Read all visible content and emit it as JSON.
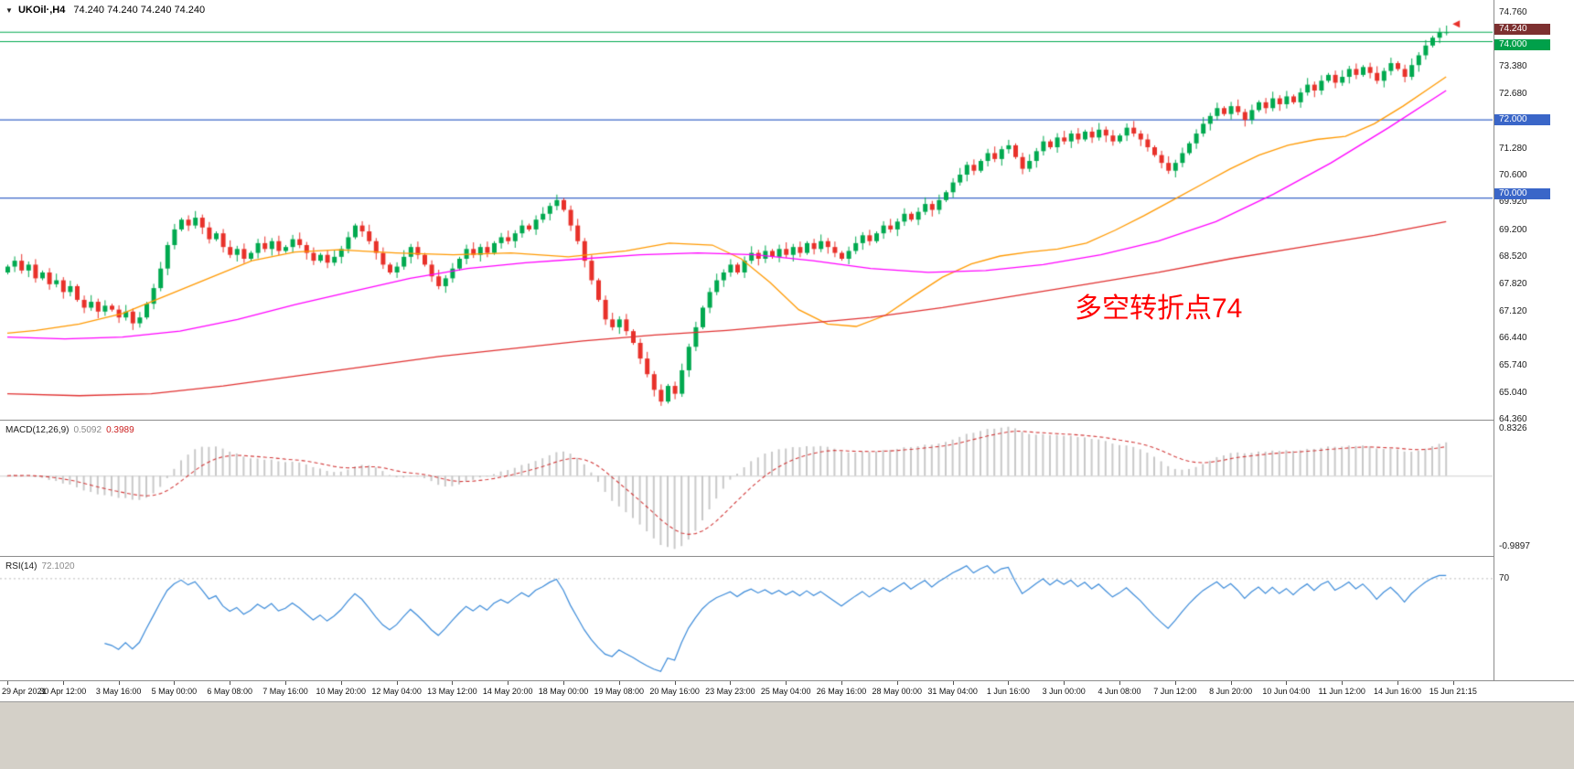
{
  "header": {
    "collapse_icon": "▼",
    "symbol": "UKOil·,H4",
    "ohlc": "74.240 74.240 74.240 74.240"
  },
  "price_axis": {
    "labels": [
      "74.760",
      "73.380",
      "72.680",
      "71.280",
      "70.600",
      "69.920",
      "69.200",
      "68.520",
      "67.820",
      "67.120",
      "66.440",
      "65.740",
      "65.040",
      "64.360"
    ],
    "tags": [
      {
        "label": "74.240",
        "price": 74.24,
        "bg": "#7d3030",
        "dy": -3
      },
      {
        "label": "74.000",
        "price": 74.0,
        "bg": "#00a04a",
        "dy": 3
      },
      {
        "label": "72.000",
        "price": 72.0,
        "bg": "#3a66c8",
        "dy": 0
      },
      {
        "label": "70.000",
        "price": 70.0,
        "bg": "#3a66c8",
        "dy": -5
      }
    ]
  },
  "chart_data": [
    {
      "type": "candlestick",
      "symbol": "UKOil",
      "timeframe": "H4",
      "y_range": [
        64.36,
        74.76
      ],
      "up_color": "#00a94f",
      "down_color": "#e8312a",
      "first_open": 68.1,
      "closes": [
        68.25,
        68.4,
        68.15,
        68.3,
        67.95,
        68.1,
        67.8,
        67.9,
        67.6,
        67.75,
        67.4,
        67.2,
        67.35,
        67.1,
        67.25,
        67.15,
        66.95,
        67.1,
        66.8,
        66.95,
        67.3,
        67.7,
        68.2,
        68.8,
        69.2,
        69.45,
        69.3,
        69.5,
        69.25,
        68.95,
        69.1,
        68.75,
        68.55,
        68.7,
        68.45,
        68.6,
        68.85,
        68.7,
        68.9,
        68.65,
        68.75,
        68.95,
        68.8,
        68.6,
        68.4,
        68.55,
        68.35,
        68.5,
        68.7,
        69.0,
        69.3,
        69.15,
        68.9,
        68.6,
        68.3,
        68.1,
        68.25,
        68.5,
        68.75,
        68.55,
        68.3,
        68.0,
        67.75,
        67.95,
        68.2,
        68.45,
        68.7,
        68.55,
        68.75,
        68.6,
        68.85,
        69.0,
        68.9,
        69.1,
        69.3,
        69.2,
        69.45,
        69.6,
        69.8,
        69.95,
        69.7,
        69.3,
        68.9,
        68.4,
        67.9,
        67.4,
        66.9,
        66.7,
        66.9,
        66.6,
        66.3,
        65.9,
        65.5,
        65.1,
        64.8,
        65.2,
        65.0,
        65.6,
        66.2,
        66.7,
        67.2,
        67.6,
        67.9,
        68.1,
        68.3,
        68.1,
        68.4,
        68.6,
        68.45,
        68.65,
        68.5,
        68.7,
        68.55,
        68.75,
        68.6,
        68.85,
        68.7,
        68.9,
        68.75,
        68.6,
        68.45,
        68.65,
        68.85,
        69.05,
        68.9,
        69.1,
        69.3,
        69.2,
        69.4,
        69.6,
        69.45,
        69.65,
        69.85,
        69.7,
        69.95,
        70.15,
        70.4,
        70.6,
        70.85,
        70.7,
        70.95,
        71.15,
        71.0,
        71.25,
        71.35,
        71.05,
        70.75,
        70.95,
        71.2,
        71.45,
        71.3,
        71.55,
        71.45,
        71.65,
        71.5,
        71.7,
        71.55,
        71.75,
        71.6,
        71.45,
        71.6,
        71.8,
        71.65,
        71.5,
        71.3,
        71.1,
        70.9,
        70.7,
        70.9,
        71.15,
        71.4,
        71.65,
        71.9,
        72.1,
        72.3,
        72.15,
        72.35,
        72.2,
        72.0,
        72.25,
        72.45,
        72.3,
        72.55,
        72.4,
        72.6,
        72.45,
        72.7,
        72.9,
        72.75,
        73.0,
        73.15,
        72.95,
        73.1,
        73.3,
        73.15,
        73.35,
        73.2,
        73.0,
        73.25,
        73.45,
        73.3,
        73.1,
        73.4,
        73.65,
        73.9,
        74.1,
        74.24,
        74.24
      ],
      "hlines": [
        {
          "price": 74.24,
          "color": "#00a94f"
        },
        {
          "price": 74.0,
          "color": "#00a94f"
        },
        {
          "price": 72.0,
          "color": "#3a66c8"
        },
        {
          "price": 70.0,
          "color": "#3a66c8"
        }
      ],
      "ma_lines": [
        {
          "name": "MA fast",
          "color": "#ff9900",
          "points": [
            [
              0,
              66.55
            ],
            [
              0.02,
              66.62
            ],
            [
              0.05,
              66.78
            ],
            [
              0.08,
              67.05
            ],
            [
              0.11,
              67.5
            ],
            [
              0.14,
              67.95
            ],
            [
              0.17,
              68.4
            ],
            [
              0.2,
              68.62
            ],
            [
              0.23,
              68.68
            ],
            [
              0.27,
              68.6
            ],
            [
              0.31,
              68.55
            ],
            [
              0.35,
              68.6
            ],
            [
              0.39,
              68.5
            ],
            [
              0.43,
              68.65
            ],
            [
              0.46,
              68.85
            ],
            [
              0.49,
              68.8
            ],
            [
              0.51,
              68.45
            ],
            [
              0.53,
              67.85
            ],
            [
              0.55,
              67.15
            ],
            [
              0.57,
              66.78
            ],
            [
              0.59,
              66.72
            ],
            [
              0.61,
              67.0
            ],
            [
              0.63,
              67.5
            ],
            [
              0.65,
              67.98
            ],
            [
              0.67,
              68.32
            ],
            [
              0.69,
              68.52
            ],
            [
              0.71,
              68.62
            ],
            [
              0.73,
              68.7
            ],
            [
              0.75,
              68.85
            ],
            [
              0.77,
              69.18
            ],
            [
              0.79,
              69.55
            ],
            [
              0.81,
              69.95
            ],
            [
              0.83,
              70.35
            ],
            [
              0.85,
              70.75
            ],
            [
              0.87,
              71.1
            ],
            [
              0.89,
              71.35
            ],
            [
              0.91,
              71.5
            ],
            [
              0.93,
              71.58
            ],
            [
              0.95,
              71.9
            ],
            [
              0.97,
              72.35
            ],
            [
              0.99,
              72.85
            ],
            [
              1,
              73.1
            ]
          ]
        },
        {
          "name": "MA mid",
          "color": "#ff00ff",
          "points": [
            [
              0,
              66.45
            ],
            [
              0.04,
              66.4
            ],
            [
              0.08,
              66.45
            ],
            [
              0.12,
              66.6
            ],
            [
              0.16,
              66.9
            ],
            [
              0.2,
              67.28
            ],
            [
              0.24,
              67.62
            ],
            [
              0.28,
              67.95
            ],
            [
              0.32,
              68.2
            ],
            [
              0.36,
              68.35
            ],
            [
              0.4,
              68.45
            ],
            [
              0.44,
              68.55
            ],
            [
              0.48,
              68.6
            ],
            [
              0.52,
              68.55
            ],
            [
              0.56,
              68.4
            ],
            [
              0.6,
              68.2
            ],
            [
              0.64,
              68.1
            ],
            [
              0.68,
              68.15
            ],
            [
              0.72,
              68.3
            ],
            [
              0.76,
              68.55
            ],
            [
              0.8,
              68.9
            ],
            [
              0.84,
              69.4
            ],
            [
              0.88,
              70.1
            ],
            [
              0.92,
              70.9
            ],
            [
              0.96,
              71.8
            ],
            [
              1,
              72.75
            ]
          ]
        },
        {
          "name": "MA slow",
          "color": "#e03030",
          "points": [
            [
              0,
              65.0
            ],
            [
              0.05,
              64.95
            ],
            [
              0.1,
              65.0
            ],
            [
              0.15,
              65.2
            ],
            [
              0.2,
              65.45
            ],
            [
              0.25,
              65.7
            ],
            [
              0.3,
              65.95
            ],
            [
              0.35,
              66.15
            ],
            [
              0.4,
              66.35
            ],
            [
              0.45,
              66.5
            ],
            [
              0.5,
              66.62
            ],
            [
              0.55,
              66.78
            ],
            [
              0.6,
              66.95
            ],
            [
              0.65,
              67.2
            ],
            [
              0.7,
              67.5
            ],
            [
              0.75,
              67.8
            ],
            [
              0.8,
              68.1
            ],
            [
              0.85,
              68.45
            ],
            [
              0.9,
              68.75
            ],
            [
              0.95,
              69.05
            ],
            [
              1,
              69.4
            ]
          ]
        }
      ],
      "marker": {
        "type": "arrow",
        "price": 74.45,
        "color": "#e8312a"
      },
      "annotation": {
        "text": "多空转折点74",
        "color": "#ff0000"
      },
      "x_labels": [
        "29 Apr 2021",
        "30 Apr 12:00",
        "3 May 16:00",
        "5 May 00:00",
        "6 May 08:00",
        "7 May 16:00",
        "10 May 20:00",
        "12 May 04:00",
        "13 May 12:00",
        "14 May 20:00",
        "18 May 00:00",
        "19 May 08:00",
        "20 May 16:00",
        "23 May 23:00",
        "25 May 04:00",
        "26 May 16:00",
        "28 May 00:00",
        "31 May 04:00",
        "1 Jun 16:00",
        "3 Jun 00:00",
        "4 Jun 08:00",
        "7 Jun 12:00",
        "8 Jun 20:00",
        "10 Jun 04:00",
        "11 Jun 12:00",
        "14 Jun 16:00",
        "15 Jun 21:15"
      ]
    },
    {
      "type": "macd",
      "label": "MACD(12,26,9)",
      "params": [
        12,
        26,
        9
      ],
      "main_value": "0.5092",
      "signal_value": "0.3989",
      "axis_max": "0.8326",
      "axis_min": "-0.9897",
      "histogram_color": "#c8c8c8",
      "signal_color": "#d23a3a"
    },
    {
      "type": "rsi",
      "label": "RSI(14)",
      "period": 14,
      "value": "72.1020",
      "line_color": "#3c8bd9",
      "level": 70,
      "level_label": "70"
    }
  ]
}
